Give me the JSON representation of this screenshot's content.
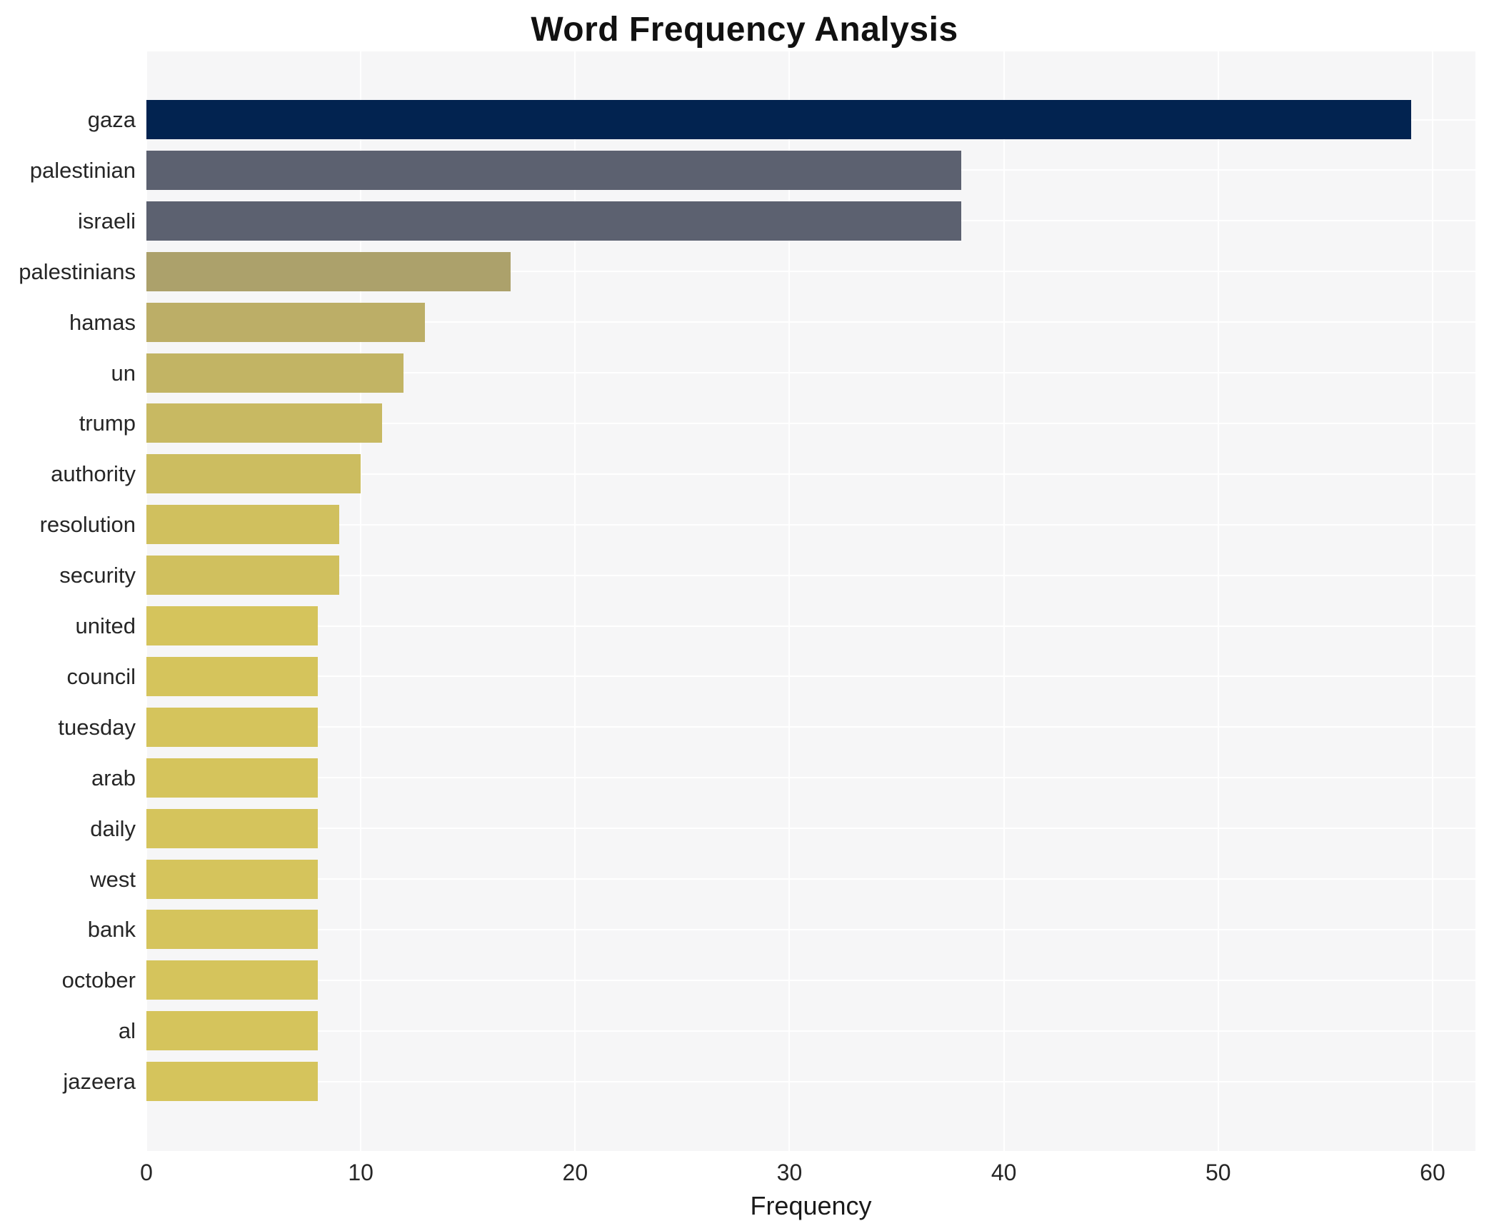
{
  "chart_data": {
    "type": "bar",
    "orientation": "horizontal",
    "title": "Word Frequency Analysis",
    "xlabel": "Frequency",
    "ylabel": "",
    "categories": [
      "gaza",
      "palestinian",
      "israeli",
      "palestinians",
      "hamas",
      "un",
      "trump",
      "authority",
      "resolution",
      "security",
      "united",
      "council",
      "tuesday",
      "arab",
      "daily",
      "west",
      "bank",
      "october",
      "al",
      "jazeera"
    ],
    "values": [
      59,
      38,
      38,
      17,
      13,
      12,
      11,
      10,
      9,
      9,
      8,
      8,
      8,
      8,
      8,
      8,
      8,
      8,
      8,
      8
    ],
    "bar_colors": [
      "#022350",
      "#5c6170",
      "#5c6170",
      "#aca16b",
      "#bcae67",
      "#c2b464",
      "#c8b962",
      "#ccbd60",
      "#d0c05e",
      "#d0c05e",
      "#d5c45c",
      "#d5c45c",
      "#d5c45c",
      "#d5c45c",
      "#d5c45c",
      "#d5c45c",
      "#d5c45c",
      "#d5c45c",
      "#d5c45c",
      "#d5c45c"
    ],
    "xlim": [
      0,
      62
    ],
    "xticks": [
      0,
      10,
      20,
      30,
      40,
      50,
      60
    ],
    "grid": true,
    "legend": "none",
    "plot_background": "#f6f6f7",
    "grid_color": "#ffffff",
    "text_color": "#262626"
  }
}
